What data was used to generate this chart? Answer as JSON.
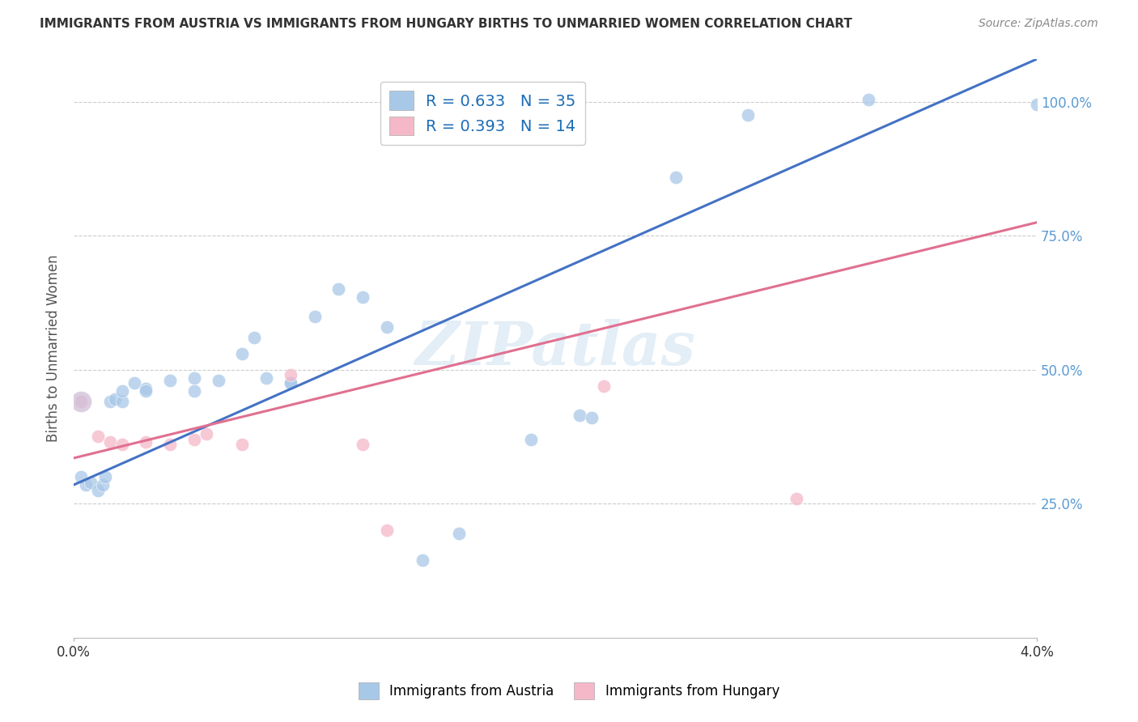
{
  "title": "IMMIGRANTS FROM AUSTRIA VS IMMIGRANTS FROM HUNGARY BIRTHS TO UNMARRIED WOMEN CORRELATION CHART",
  "source": "Source: ZipAtlas.com",
  "ylabel": "Births to Unmarried Women",
  "legend_austria": "R = 0.633   N = 35",
  "legend_hungary": "R = 0.393   N = 14",
  "legend_bottom_austria": "Immigrants from Austria",
  "legend_bottom_hungary": "Immigrants from Hungary",
  "watermark": "ZIPatlas",
  "austria_color": "#a8c8e8",
  "hungary_color": "#f4b8c8",
  "austria_line_color": "#4472c4",
  "hungary_line_color": "#e07090",
  "austria_x": [
    0.0003,
    0.0005,
    0.0007,
    0.001,
    0.0012,
    0.0013,
    0.0015,
    0.0017,
    0.002,
    0.002,
    0.0025,
    0.003,
    0.003,
    0.004,
    0.005,
    0.005,
    0.006,
    0.007,
    0.0075,
    0.008,
    0.009,
    0.009,
    0.01,
    0.011,
    0.012,
    0.013,
    0.0145,
    0.016,
    0.019,
    0.021,
    0.0215,
    0.025,
    0.028,
    0.033,
    0.04
  ],
  "austria_y": [
    0.3,
    0.285,
    0.29,
    0.275,
    0.285,
    0.3,
    0.44,
    0.445,
    0.44,
    0.46,
    0.475,
    0.465,
    0.46,
    0.48,
    0.485,
    0.46,
    0.48,
    0.53,
    0.56,
    0.485,
    0.475,
    0.475,
    0.6,
    0.65,
    0.635,
    0.58,
    0.145,
    0.195,
    0.37,
    0.415,
    0.41,
    0.86,
    0.975,
    1.005,
    0.995
  ],
  "hungary_x": [
    0.0003,
    0.001,
    0.0015,
    0.002,
    0.003,
    0.004,
    0.005,
    0.0055,
    0.007,
    0.009,
    0.012,
    0.013,
    0.022,
    0.03
  ],
  "hungary_y": [
    0.44,
    0.375,
    0.365,
    0.36,
    0.365,
    0.36,
    0.37,
    0.38,
    0.36,
    0.49,
    0.36,
    0.2,
    0.47,
    0.26
  ],
  "austria_trend_x": [
    0.0,
    0.04
  ],
  "austria_trend_y": [
    0.285,
    1.08
  ],
  "hungary_trend_x": [
    0.0,
    0.04
  ],
  "hungary_trend_y": [
    0.335,
    0.775
  ],
  "xmin": 0.0,
  "xmax": 0.04,
  "ymin": 0.0,
  "ymax": 1.08,
  "yticks": [
    0.25,
    0.5,
    0.75,
    1.0
  ],
  "ytick_labels": [
    "25.0%",
    "50.0%",
    "75.0%",
    "100.0%"
  ]
}
